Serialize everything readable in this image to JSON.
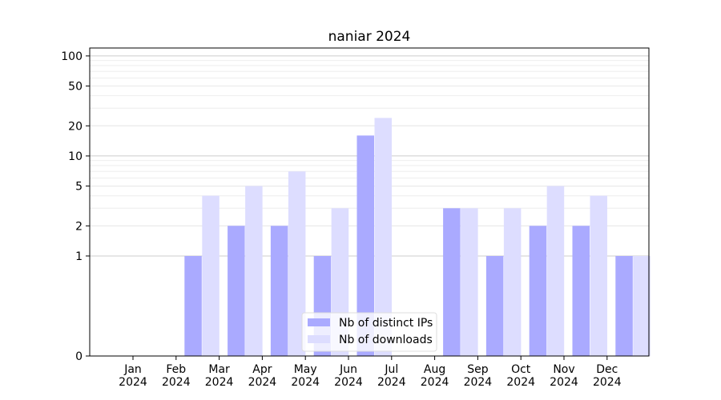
{
  "chart_data": {
    "type": "bar",
    "title": "naniar 2024",
    "xlabel": "",
    "ylabel": "",
    "yscale": "symlog",
    "ylim": [
      0,
      120
    ],
    "yticks": [
      0,
      1,
      2,
      5,
      10,
      20,
      50,
      100
    ],
    "grid": "horizontal",
    "legend_position": "bottom-center",
    "categories": [
      [
        "Jan",
        "2024"
      ],
      [
        "Feb",
        "2024"
      ],
      [
        "Mar",
        "2024"
      ],
      [
        "Apr",
        "2024"
      ],
      [
        "May",
        "2024"
      ],
      [
        "Jun",
        "2024"
      ],
      [
        "Jul",
        "2024"
      ],
      [
        "Aug",
        "2024"
      ],
      [
        "Sep",
        "2024"
      ],
      [
        "Oct",
        "2024"
      ],
      [
        "Nov",
        "2024"
      ],
      [
        "Dec",
        "2024"
      ]
    ],
    "series": [
      {
        "name": "Nb of distinct IPs",
        "color": "#aaaaff",
        "values": [
          0,
          1,
          2,
          2,
          1,
          16,
          0,
          3,
          1,
          2,
          2,
          1
        ]
      },
      {
        "name": "Nb of downloads",
        "color": "#ddddff",
        "values": [
          0,
          4,
          5,
          7,
          3,
          24,
          0,
          3,
          3,
          5,
          4,
          1
        ]
      }
    ]
  }
}
